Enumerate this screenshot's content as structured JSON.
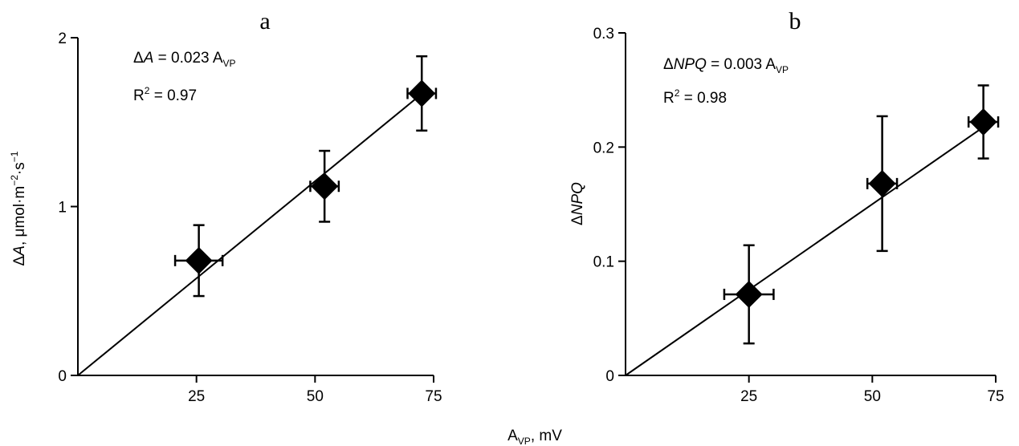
{
  "xlabel": {
    "main": "A",
    "sub": "VP",
    "unit": ", mV"
  },
  "chart_data": [
    {
      "type": "scatter",
      "panel_label": "a",
      "ylabel": {
        "delta": "Δ",
        "var": "A",
        "rest": ", μmol·m",
        "exp1": "−2",
        "mid": "·s",
        "exp2": "−1"
      },
      "xlim": [
        0,
        75
      ],
      "ylim": [
        0,
        2
      ],
      "x_ticks": [
        "25",
        "50",
        "75"
      ],
      "y_ticks": [
        "0",
        "1",
        "2"
      ],
      "x_tick_values": [
        25,
        50,
        75
      ],
      "y_tick_values": [
        0,
        1,
        2
      ],
      "points": [
        {
          "x": 25.5,
          "y": 0.68,
          "xerr": 5.0,
          "yerr": 0.21
        },
        {
          "x": 52.0,
          "y": 1.12,
          "xerr": 3.0,
          "yerr": 0.21
        },
        {
          "x": 72.5,
          "y": 1.67,
          "xerr": 3.0,
          "yerr": 0.22
        }
      ],
      "fit": {
        "slope": 0.023,
        "x_end": 73
      },
      "equation": {
        "delta": "Δ",
        "var": "A",
        "eq": " = 0.023 A",
        "sub": "VP"
      },
      "r2": {
        "r": "R",
        "sup": "2",
        "val": " = 0.97"
      }
    },
    {
      "type": "scatter",
      "panel_label": "b",
      "ylabel": {
        "delta": "Δ",
        "var": "NPQ"
      },
      "xlim": [
        0,
        75
      ],
      "ylim": [
        0,
        0.3
      ],
      "x_ticks": [
        "25",
        "50",
        "75"
      ],
      "y_ticks": [
        "0",
        "0.1",
        "0.2",
        "0.3"
      ],
      "x_tick_values": [
        25,
        50,
        75
      ],
      "y_tick_values": [
        0,
        0.1,
        0.2,
        0.3
      ],
      "points": [
        {
          "x": 25.0,
          "y": 0.071,
          "xerr": 5.0,
          "yerr": 0.043
        },
        {
          "x": 52.0,
          "y": 0.168,
          "xerr": 3.0,
          "yerr": 0.059
        },
        {
          "x": 72.5,
          "y": 0.222,
          "xerr": 3.0,
          "yerr": 0.032
        }
      ],
      "fit": {
        "slope": 0.003,
        "x_end": 73
      },
      "equation": {
        "delta": "Δ",
        "var": "NPQ",
        "eq": " = 0.003 A",
        "sub": "VP"
      },
      "r2": {
        "r": "R",
        "sup": "2",
        "val": " = 0.98"
      }
    }
  ]
}
